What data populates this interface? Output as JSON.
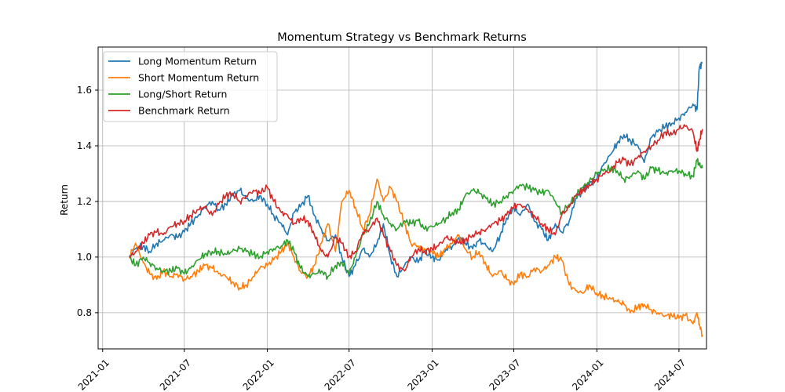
{
  "chart_data": {
    "type": "line",
    "title": "Momentum Strategy vs Benchmark Returns",
    "xlabel": "",
    "ylabel": "Return",
    "x_type": "date",
    "xlim": [
      "2020-12-22",
      "2024-08-31"
    ],
    "ylim": [
      0.67,
      1.755
    ],
    "grid": true,
    "legend": "top-left",
    "x_ticks": [
      "2021-01",
      "2021-07",
      "2022-01",
      "2022-07",
      "2023-01",
      "2023-07",
      "2024-01",
      "2024-07"
    ],
    "y_ticks": [
      0.8,
      1.0,
      1.2,
      1.4,
      1.6
    ],
    "y_tick_labels": [
      "0.8",
      "1.0",
      "1.2",
      "1.4",
      "1.6"
    ],
    "series": [
      {
        "name": "Long Momentum Return",
        "color": "#1f77b4",
        "x": [
          "2021-03-01",
          "2021-03-15",
          "2021-04-01",
          "2021-04-15",
          "2021-05-01",
          "2021-05-15",
          "2021-06-01",
          "2021-06-15",
          "2021-07-01",
          "2021-07-15",
          "2021-08-01",
          "2021-08-15",
          "2021-09-01",
          "2021-09-15",
          "2021-10-01",
          "2021-10-15",
          "2021-11-01",
          "2021-11-15",
          "2021-12-01",
          "2021-12-15",
          "2022-01-01",
          "2022-01-15",
          "2022-02-01",
          "2022-02-15",
          "2022-03-01",
          "2022-03-15",
          "2022-04-01",
          "2022-04-15",
          "2022-05-01",
          "2022-05-15",
          "2022-06-01",
          "2022-06-15",
          "2022-07-01",
          "2022-07-15",
          "2022-08-01",
          "2022-08-15",
          "2022-09-01",
          "2022-09-15",
          "2022-10-01",
          "2022-10-15",
          "2022-11-01",
          "2022-11-15",
          "2022-12-01",
          "2022-12-15",
          "2023-01-01",
          "2023-01-15",
          "2023-02-01",
          "2023-02-15",
          "2023-03-01",
          "2023-03-15",
          "2023-04-01",
          "2023-04-15",
          "2023-05-01",
          "2023-05-15",
          "2023-06-01",
          "2023-06-15",
          "2023-07-01",
          "2023-07-15",
          "2023-08-01",
          "2023-08-15",
          "2023-09-01",
          "2023-09-15",
          "2023-10-01",
          "2023-10-15",
          "2023-11-01",
          "2023-11-15",
          "2023-12-01",
          "2023-12-15",
          "2024-01-01",
          "2024-01-15",
          "2024-02-01",
          "2024-02-15",
          "2024-03-01",
          "2024-03-15",
          "2024-04-01",
          "2024-04-15",
          "2024-05-01",
          "2024-05-15",
          "2024-06-01",
          "2024-06-15",
          "2024-07-01",
          "2024-07-15",
          "2024-08-01",
          "2024-08-10",
          "2024-08-15",
          "2024-08-22"
        ],
        "values": [
          1.0,
          1.03,
          1.04,
          1.02,
          1.05,
          1.06,
          1.08,
          1.07,
          1.09,
          1.12,
          1.15,
          1.18,
          1.2,
          1.17,
          1.19,
          1.22,
          1.24,
          1.21,
          1.2,
          1.22,
          1.19,
          1.15,
          1.12,
          1.08,
          1.16,
          1.18,
          1.22,
          1.15,
          1.1,
          1.06,
          1.08,
          1.0,
          0.93,
          0.97,
          1.03,
          1.0,
          1.05,
          1.12,
          1.0,
          0.93,
          0.97,
          1.0,
          0.98,
          1.02,
          1.0,
          0.99,
          1.03,
          1.04,
          1.07,
          1.05,
          1.03,
          1.06,
          1.04,
          1.02,
          1.08,
          1.14,
          1.18,
          1.15,
          1.19,
          1.13,
          1.1,
          1.06,
          1.12,
          1.09,
          1.13,
          1.21,
          1.24,
          1.26,
          1.28,
          1.33,
          1.37,
          1.41,
          1.44,
          1.42,
          1.4,
          1.34,
          1.43,
          1.45,
          1.47,
          1.48,
          1.5,
          1.52,
          1.55,
          1.53,
          1.68,
          1.7
        ]
      },
      {
        "name": "Short Momentum Return",
        "color": "#ff7f0e",
        "x": [
          "2021-03-01",
          "2021-03-15",
          "2021-04-01",
          "2021-04-15",
          "2021-05-01",
          "2021-05-15",
          "2021-06-01",
          "2021-06-15",
          "2021-07-01",
          "2021-07-15",
          "2021-08-01",
          "2021-08-15",
          "2021-09-01",
          "2021-09-15",
          "2021-10-01",
          "2021-10-15",
          "2021-11-01",
          "2021-11-15",
          "2021-12-01",
          "2021-12-15",
          "2022-01-01",
          "2022-01-15",
          "2022-02-01",
          "2022-02-15",
          "2022-03-01",
          "2022-03-15",
          "2022-04-01",
          "2022-04-15",
          "2022-05-01",
          "2022-05-15",
          "2022-06-01",
          "2022-06-15",
          "2022-07-01",
          "2022-07-15",
          "2022-08-01",
          "2022-08-15",
          "2022-09-01",
          "2022-09-15",
          "2022-10-01",
          "2022-10-15",
          "2022-11-01",
          "2022-11-15",
          "2022-12-01",
          "2022-12-15",
          "2023-01-01",
          "2023-01-15",
          "2023-02-01",
          "2023-02-15",
          "2023-03-01",
          "2023-03-15",
          "2023-04-01",
          "2023-04-15",
          "2023-05-01",
          "2023-05-15",
          "2023-06-01",
          "2023-06-15",
          "2023-07-01",
          "2023-07-15",
          "2023-08-01",
          "2023-08-15",
          "2023-09-01",
          "2023-09-15",
          "2023-10-01",
          "2023-10-15",
          "2023-11-01",
          "2023-11-15",
          "2023-12-01",
          "2023-12-15",
          "2024-01-01",
          "2024-01-15",
          "2024-02-01",
          "2024-02-15",
          "2024-03-01",
          "2024-03-15",
          "2024-04-01",
          "2024-04-15",
          "2024-05-01",
          "2024-05-15",
          "2024-06-01",
          "2024-06-15",
          "2024-07-01",
          "2024-07-15",
          "2024-08-01",
          "2024-08-10",
          "2024-08-15",
          "2024-08-22"
        ],
        "values": [
          1.0,
          1.05,
          0.98,
          0.94,
          0.92,
          0.95,
          0.93,
          0.94,
          0.92,
          0.93,
          0.95,
          0.97,
          0.96,
          0.94,
          0.93,
          0.91,
          0.89,
          0.9,
          0.93,
          0.96,
          0.97,
          0.99,
          1.02,
          1.05,
          1.0,
          0.95,
          0.93,
          0.97,
          1.05,
          1.12,
          1.02,
          1.2,
          1.24,
          1.18,
          1.1,
          1.15,
          1.28,
          1.2,
          1.25,
          1.2,
          1.12,
          1.05,
          1.04,
          1.03,
          1.02,
          1.0,
          1.03,
          1.05,
          1.08,
          1.03,
          1.0,
          1.02,
          0.97,
          0.93,
          0.95,
          0.92,
          0.9,
          0.94,
          0.93,
          0.96,
          0.95,
          0.97,
          1.0,
          0.99,
          0.9,
          0.88,
          0.87,
          0.9,
          0.87,
          0.86,
          0.85,
          0.84,
          0.83,
          0.8,
          0.82,
          0.83,
          0.81,
          0.8,
          0.79,
          0.79,
          0.78,
          0.79,
          0.76,
          0.8,
          0.76,
          0.72
        ]
      },
      {
        "name": "Long/Short Return",
        "color": "#2ca02c",
        "x": [
          "2021-03-01",
          "2021-03-15",
          "2021-04-01",
          "2021-04-15",
          "2021-05-01",
          "2021-05-15",
          "2021-06-01",
          "2021-06-15",
          "2021-07-01",
          "2021-07-15",
          "2021-08-01",
          "2021-08-15",
          "2021-09-01",
          "2021-09-15",
          "2021-10-01",
          "2021-10-15",
          "2021-11-01",
          "2021-11-15",
          "2021-12-01",
          "2021-12-15",
          "2022-01-01",
          "2022-01-15",
          "2022-02-01",
          "2022-02-15",
          "2022-03-01",
          "2022-03-15",
          "2022-04-01",
          "2022-04-15",
          "2022-05-01",
          "2022-05-15",
          "2022-06-01",
          "2022-06-15",
          "2022-07-01",
          "2022-07-15",
          "2022-08-01",
          "2022-08-15",
          "2022-09-01",
          "2022-09-15",
          "2022-10-01",
          "2022-10-15",
          "2022-11-01",
          "2022-11-15",
          "2022-12-01",
          "2022-12-15",
          "2023-01-01",
          "2023-01-15",
          "2023-02-01",
          "2023-02-15",
          "2023-03-01",
          "2023-03-15",
          "2023-04-01",
          "2023-04-15",
          "2023-05-01",
          "2023-05-15",
          "2023-06-01",
          "2023-06-15",
          "2023-07-01",
          "2023-07-15",
          "2023-08-01",
          "2023-08-15",
          "2023-09-01",
          "2023-09-15",
          "2023-10-01",
          "2023-10-15",
          "2023-11-01",
          "2023-11-15",
          "2023-12-01",
          "2023-12-15",
          "2024-01-01",
          "2024-01-15",
          "2024-02-01",
          "2024-02-15",
          "2024-03-01",
          "2024-03-15",
          "2024-04-01",
          "2024-04-15",
          "2024-05-01",
          "2024-05-15",
          "2024-06-01",
          "2024-06-15",
          "2024-07-01",
          "2024-07-15",
          "2024-08-01",
          "2024-08-10",
          "2024-08-15",
          "2024-08-22"
        ],
        "values": [
          1.0,
          0.97,
          1.0,
          0.98,
          0.96,
          0.95,
          0.95,
          0.96,
          0.94,
          0.96,
          0.99,
          1.01,
          1.02,
          1.02,
          1.01,
          1.02,
          1.03,
          1.02,
          1.01,
          1.0,
          1.02,
          1.03,
          1.04,
          1.06,
          1.02,
          0.96,
          0.93,
          0.94,
          0.95,
          0.93,
          0.97,
          0.98,
          0.94,
          1.0,
          1.08,
          1.12,
          1.2,
          1.15,
          1.12,
          1.1,
          1.13,
          1.12,
          1.13,
          1.1,
          1.11,
          1.12,
          1.14,
          1.16,
          1.17,
          1.22,
          1.24,
          1.23,
          1.21,
          1.19,
          1.2,
          1.22,
          1.24,
          1.26,
          1.25,
          1.24,
          1.23,
          1.24,
          1.2,
          1.16,
          1.19,
          1.22,
          1.25,
          1.27,
          1.3,
          1.31,
          1.32,
          1.31,
          1.28,
          1.29,
          1.31,
          1.28,
          1.32,
          1.31,
          1.3,
          1.31,
          1.31,
          1.3,
          1.29,
          1.35,
          1.33,
          1.32
        ]
      },
      {
        "name": "Benchmark Return",
        "color": "#d62728",
        "x": [
          "2021-03-01",
          "2021-03-15",
          "2021-04-01",
          "2021-04-15",
          "2021-05-01",
          "2021-05-15",
          "2021-06-01",
          "2021-06-15",
          "2021-07-01",
          "2021-07-15",
          "2021-08-01",
          "2021-08-15",
          "2021-09-01",
          "2021-09-15",
          "2021-10-01",
          "2021-10-15",
          "2021-11-01",
          "2021-11-15",
          "2021-12-01",
          "2021-12-15",
          "2022-01-01",
          "2022-01-15",
          "2022-02-01",
          "2022-02-15",
          "2022-03-01",
          "2022-03-15",
          "2022-04-01",
          "2022-04-15",
          "2022-05-01",
          "2022-05-15",
          "2022-06-01",
          "2022-06-15",
          "2022-07-01",
          "2022-07-15",
          "2022-08-01",
          "2022-08-15",
          "2022-09-01",
          "2022-09-15",
          "2022-10-01",
          "2022-10-15",
          "2022-11-01",
          "2022-11-15",
          "2022-12-01",
          "2022-12-15",
          "2023-01-01",
          "2023-01-15",
          "2023-02-01",
          "2023-02-15",
          "2023-03-01",
          "2023-03-15",
          "2023-04-01",
          "2023-04-15",
          "2023-05-01",
          "2023-05-15",
          "2023-06-01",
          "2023-06-15",
          "2023-07-01",
          "2023-07-15",
          "2023-08-01",
          "2023-08-15",
          "2023-09-01",
          "2023-09-15",
          "2023-10-01",
          "2023-10-15",
          "2023-11-01",
          "2023-11-15",
          "2023-12-01",
          "2023-12-15",
          "2024-01-01",
          "2024-01-15",
          "2024-02-01",
          "2024-02-15",
          "2024-03-01",
          "2024-03-15",
          "2024-04-01",
          "2024-04-15",
          "2024-05-01",
          "2024-05-15",
          "2024-06-01",
          "2024-06-15",
          "2024-07-01",
          "2024-07-15",
          "2024-08-01",
          "2024-08-10",
          "2024-08-15",
          "2024-08-22"
        ],
        "values": [
          1.0,
          1.02,
          1.05,
          1.08,
          1.09,
          1.08,
          1.11,
          1.12,
          1.13,
          1.15,
          1.17,
          1.18,
          1.15,
          1.19,
          1.22,
          1.23,
          1.2,
          1.22,
          1.24,
          1.23,
          1.25,
          1.2,
          1.16,
          1.15,
          1.12,
          1.14,
          1.13,
          1.08,
          1.02,
          1.0,
          1.07,
          1.05,
          1.0,
          1.02,
          1.09,
          1.1,
          1.14,
          1.08,
          1.02,
          0.97,
          0.95,
          1.0,
          1.03,
          1.02,
          1.03,
          1.04,
          1.07,
          1.06,
          1.05,
          1.06,
          1.08,
          1.09,
          1.1,
          1.12,
          1.13,
          1.15,
          1.18,
          1.19,
          1.17,
          1.15,
          1.12,
          1.1,
          1.08,
          1.15,
          1.18,
          1.22,
          1.24,
          1.26,
          1.28,
          1.3,
          1.31,
          1.34,
          1.35,
          1.33,
          1.36,
          1.38,
          1.4,
          1.42,
          1.45,
          1.44,
          1.46,
          1.47,
          1.45,
          1.38,
          1.42,
          1.46
        ]
      }
    ]
  }
}
